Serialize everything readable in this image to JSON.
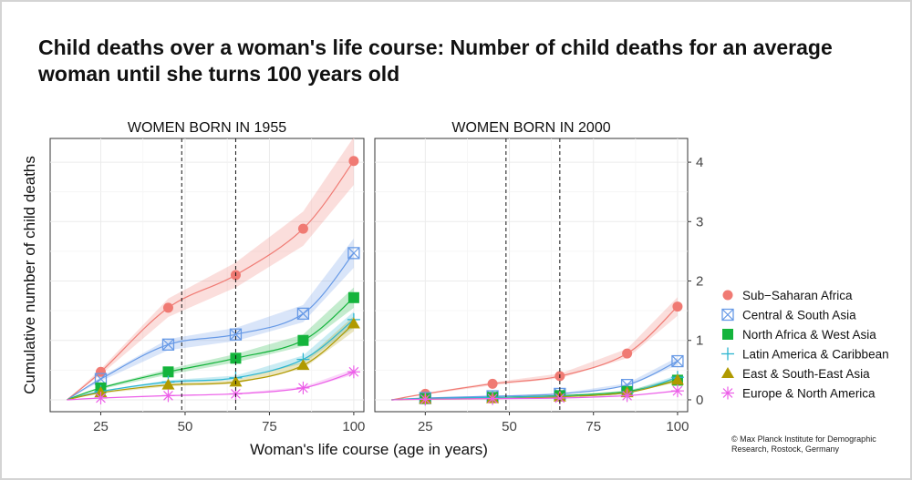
{
  "title": "Child deaths over a woman's life course: Number of child deaths for an average woman until she turns 100 years old",
  "credit": "© Max Planck Institute for Demographic Research, Rostock, Germany",
  "chart_data": {
    "type": "line",
    "xlabel": "Woman's life course (age in years)",
    "ylabel": "Cumulative number of child deaths",
    "xlim": [
      10,
      103
    ],
    "ylim": [
      -0.2,
      4.4
    ],
    "x_ticks": [
      25,
      50,
      75,
      100
    ],
    "y_ticks": [
      0,
      1,
      2,
      3,
      4
    ],
    "grid": true,
    "reference_lines_x": [
      49,
      65
    ],
    "legend_position": "right",
    "panels": [
      {
        "label": "WOMEN BORN IN 1955",
        "series": [
          {
            "name": "Sub−Saharan Africa",
            "color": "#f07a73",
            "marker": "circle",
            "x": [
              25,
              45,
              65,
              85,
              100
            ],
            "y": [
              0.47,
              1.55,
              2.1,
              2.88,
              4.02
            ]
          },
          {
            "name": "Central & South Asia",
            "color": "#6699e6",
            "marker": "square-x",
            "x": [
              25,
              45,
              65,
              85,
              100
            ],
            "y": [
              0.35,
              0.93,
              1.1,
              1.45,
              2.47
            ]
          },
          {
            "name": "North Africa & West Asia",
            "color": "#14b43c",
            "marker": "square",
            "x": [
              25,
              45,
              65,
              85,
              100
            ],
            "y": [
              0.2,
              0.47,
              0.7,
              1.0,
              1.72
            ]
          },
          {
            "name": "Latin America & Caribbean",
            "color": "#2bb5d0",
            "marker": "plus",
            "x": [
              25,
              45,
              65,
              85,
              100
            ],
            "y": [
              0.14,
              0.3,
              0.37,
              0.68,
              1.35
            ]
          },
          {
            "name": "East & South-East Asia",
            "color": "#b09a00",
            "marker": "triangle",
            "x": [
              25,
              45,
              65,
              85,
              100
            ],
            "y": [
              0.12,
              0.25,
              0.3,
              0.58,
              1.28
            ]
          },
          {
            "name": "Europe & North America",
            "color": "#ec5fe8",
            "marker": "asterisk",
            "x": [
              25,
              45,
              65,
              85,
              100
            ],
            "y": [
              0.03,
              0.07,
              0.1,
              0.2,
              0.47
            ]
          }
        ]
      },
      {
        "label": "WOMEN BORN IN 2000",
        "series": [
          {
            "name": "Sub−Saharan Africa",
            "color": "#f07a73",
            "marker": "circle",
            "x": [
              25,
              45,
              65,
              85,
              100
            ],
            "y": [
              0.1,
              0.27,
              0.4,
              0.78,
              1.57
            ]
          },
          {
            "name": "Central & South Asia",
            "color": "#6699e6",
            "marker": "square-x",
            "x": [
              25,
              45,
              65,
              85,
              100
            ],
            "y": [
              0.03,
              0.06,
              0.1,
              0.25,
              0.65
            ]
          },
          {
            "name": "North Africa & West Asia",
            "color": "#14b43c",
            "marker": "square",
            "x": [
              25,
              45,
              65,
              85,
              100
            ],
            "y": [
              0.02,
              0.04,
              0.07,
              0.14,
              0.33
            ]
          },
          {
            "name": "Latin America & Caribbean",
            "color": "#2bb5d0",
            "marker": "plus",
            "x": [
              25,
              45,
              65,
              85,
              100
            ],
            "y": [
              0.02,
              0.04,
              0.06,
              0.12,
              0.38
            ]
          },
          {
            "name": "East & South-East Asia",
            "color": "#b09a00",
            "marker": "triangle",
            "x": [
              25,
              45,
              65,
              85,
              100
            ],
            "y": [
              0.01,
              0.02,
              0.05,
              0.12,
              0.33
            ]
          },
          {
            "name": "Europe & North America",
            "color": "#ec5fe8",
            "marker": "asterisk",
            "x": [
              25,
              45,
              65,
              85,
              100
            ],
            "y": [
              0.01,
              0.02,
              0.03,
              0.07,
              0.15
            ]
          }
        ]
      }
    ]
  }
}
